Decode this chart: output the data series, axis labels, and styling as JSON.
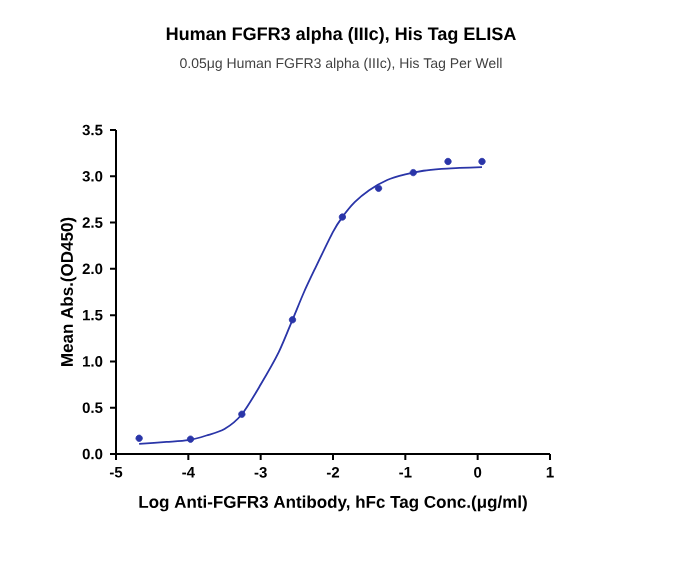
{
  "chart_data": {
    "type": "scatter",
    "title": "Human FGFR3 alpha (IIIc), His Tag ELISA",
    "subtitle": "0.05μg Human FGFR3 alpha (IIIc), His Tag Per Well",
    "xlabel": "Log  Anti-FGFR3 Antibody, hFc Tag Conc.(μg/ml)",
    "ylabel": "Mean Abs.(OD450)",
    "series": [
      {
        "color": "#2a35a8",
        "marker": "circle",
        "x": [
          -4.68,
          -3.97,
          -3.26,
          -2.56,
          -1.87,
          -1.37,
          -0.89,
          -0.41,
          0.06
        ],
        "values": [
          0.17,
          0.16,
          0.43,
          1.45,
          2.56,
          2.87,
          3.04,
          3.16,
          3.16
        ]
      },
      {
        "type": "line",
        "color": "#2a35a8",
        "line_style": "solid",
        "x": [
          -4.68,
          -4.3,
          -4.0,
          -3.75,
          -3.5,
          -3.26,
          -3.0,
          -2.75,
          -2.56,
          -2.4,
          -2.25,
          -2.0,
          -1.87,
          -1.7,
          -1.5,
          -1.25,
          -1.0,
          -0.75,
          -0.5,
          -0.25,
          0.06
        ],
        "values": [
          0.11,
          0.13,
          0.15,
          0.2,
          0.27,
          0.43,
          0.75,
          1.1,
          1.45,
          1.75,
          2.0,
          2.4,
          2.56,
          2.72,
          2.85,
          2.96,
          3.02,
          3.06,
          3.08,
          3.09,
          3.1
        ]
      }
    ],
    "xlim": [
      -5,
      1
    ],
    "xticks": [
      -5,
      -4,
      -3,
      -2,
      -1,
      0,
      1
    ],
    "ylim": [
      0,
      3.5
    ],
    "yticks": [
      {
        "value": 0,
        "label": "0.0"
      },
      0.5,
      {
        "value": 1,
        "label": "1.0"
      },
      1.5,
      {
        "value": 2,
        "label": "2.0"
      },
      2.5,
      {
        "value": 3,
        "label": "3.0"
      },
      3.5
    ],
    "grid": false
  }
}
